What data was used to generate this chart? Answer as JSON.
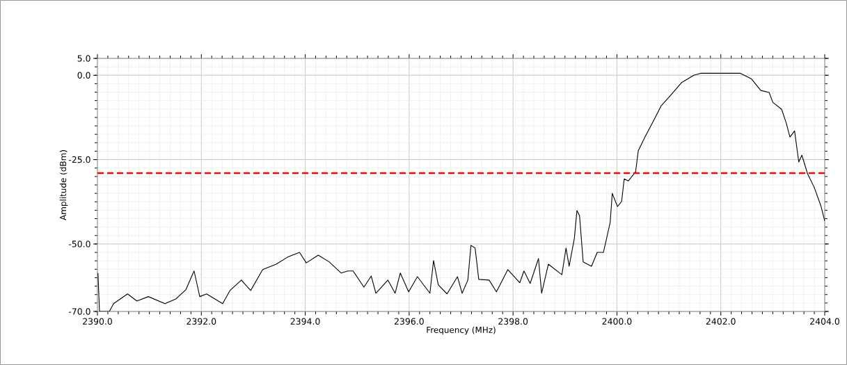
{
  "chart_data": {
    "type": "line",
    "xlabel": "Frequency (MHz)",
    "ylabel": "Amplitude (dBm)",
    "xlim": [
      2390,
      2404
    ],
    "ylim": [
      -70,
      5
    ],
    "xticks": [
      {
        "value": 2390,
        "label": "2390.0"
      },
      {
        "value": 2392,
        "label": "2392.0"
      },
      {
        "value": 2394,
        "label": "2394.0"
      },
      {
        "value": 2396,
        "label": "2396.0"
      },
      {
        "value": 2398,
        "label": "2398.0"
      },
      {
        "value": 2400,
        "label": "2400.0"
      },
      {
        "value": 2402,
        "label": "2402.0"
      },
      {
        "value": 2404,
        "label": "2404.0"
      }
    ],
    "yticks": [
      {
        "value": 5,
        "label": "5.0"
      },
      {
        "value": 0,
        "label": "0.0"
      },
      {
        "value": -25,
        "label": "-25.0"
      },
      {
        "value": -50,
        "label": "-50.0"
      },
      {
        "value": -70,
        "label": "-70.0"
      }
    ],
    "grid": true,
    "marker": "none",
    "line_style": "solid",
    "ref_lines": [
      {
        "axis": "y",
        "value": -29,
        "color": "#ff0000",
        "line_style": "dashed"
      }
    ],
    "series": [
      {
        "color": "#000000",
        "x": [
          2390.01,
          2390.04,
          2390.13,
          2390.23,
          2390.31,
          2390.58,
          2390.76,
          2390.98,
          2391.3,
          2391.51,
          2391.7,
          2391.86,
          2391.97,
          2392.1,
          2392.41,
          2392.55,
          2392.77,
          2392.95,
          2393.18,
          2393.44,
          2393.66,
          2393.89,
          2394.02,
          2394.25,
          2394.46,
          2394.69,
          2394.82,
          2394.92,
          2395.13,
          2395.27,
          2395.36,
          2395.59,
          2395.73,
          2395.83,
          2395.99,
          2396.16,
          2396.4,
          2396.47,
          2396.56,
          2396.73,
          2396.93,
          2397.02,
          2397.13,
          2397.19,
          2397.27,
          2397.34,
          2397.54,
          2397.68,
          2397.9,
          2398.13,
          2398.21,
          2398.33,
          2398.49,
          2398.55,
          2398.68,
          2398.94,
          2399.02,
          2399.08,
          2399.18,
          2399.23,
          2399.28,
          2399.35,
          2399.51,
          2399.62,
          2399.74,
          2399.87,
          2399.91,
          2400.01,
          2400.09,
          2400.14,
          2400.22,
          2400.36,
          2400.41,
          2400.54,
          2400.68,
          2400.85,
          2401.03,
          2401.25,
          2401.48,
          2401.62,
          2402.37,
          2402.59,
          2402.77,
          2402.93,
          2403.0,
          2403.17,
          2403.26,
          2403.33,
          2403.42,
          2403.5,
          2403.56,
          2403.67,
          2403.8,
          2403.93,
          2404.0
        ],
        "values": [
          -58.6,
          -70.0,
          -70.0,
          -70.0,
          -67.7,
          -64.8,
          -66.9,
          -65.6,
          -67.7,
          -66.3,
          -63.6,
          -58.0,
          -65.6,
          -64.8,
          -67.7,
          -63.8,
          -60.7,
          -63.8,
          -57.6,
          -56.0,
          -53.9,
          -52.5,
          -55.6,
          -53.3,
          -55.3,
          -58.6,
          -58.0,
          -58.0,
          -62.8,
          -59.5,
          -64.6,
          -60.7,
          -64.6,
          -58.6,
          -64.2,
          -59.7,
          -64.6,
          -54.9,
          -62.1,
          -64.8,
          -59.7,
          -64.6,
          -60.7,
          -50.4,
          -51.2,
          -60.5,
          -60.7,
          -64.2,
          -57.6,
          -61.5,
          -58.0,
          -61.7,
          -54.3,
          -64.6,
          -56.0,
          -59.1,
          -51.2,
          -56.6,
          -48.4,
          -40.1,
          -41.6,
          -55.3,
          -56.6,
          -52.5,
          -52.5,
          -43.6,
          -35.0,
          -38.9,
          -37.4,
          -30.7,
          -31.3,
          -28.6,
          -22.4,
          -18.3,
          -14.2,
          -9.1,
          -6.0,
          -2.1,
          0.0,
          0.6,
          0.6,
          -1.1,
          -4.5,
          -5.1,
          -8.0,
          -10.1,
          -14.2,
          -18.3,
          -16.5,
          -25.7,
          -23.7,
          -29.2,
          -33.3,
          -38.9,
          -43.2
        ]
      }
    ]
  }
}
